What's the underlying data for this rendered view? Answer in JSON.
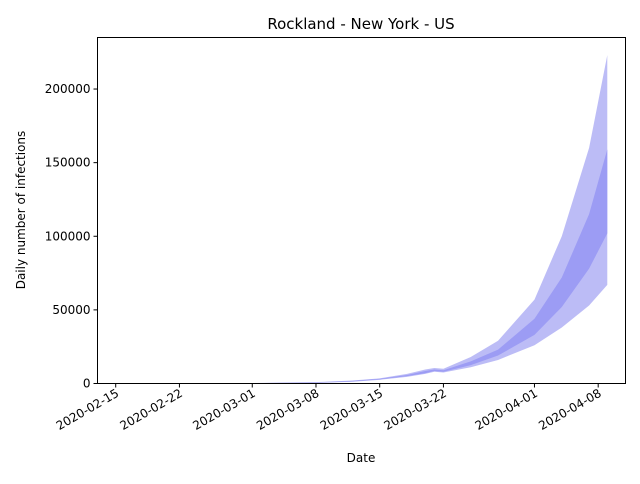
{
  "chart_data": {
    "type": "area",
    "title": "Rockland - New York - US",
    "xlabel": "Date",
    "ylabel": "Daily number of infections",
    "x_type": "date",
    "xlim": [
      "2020-02-13",
      "2020-04-11"
    ],
    "ylim": [
      0,
      235000
    ],
    "x_ticks": [
      "2020-02-15",
      "2020-02-22",
      "2020-03-01",
      "2020-03-08",
      "2020-03-15",
      "2020-03-22",
      "2020-04-01",
      "2020-04-08"
    ],
    "y_ticks": [
      0,
      50000,
      100000,
      150000,
      200000
    ],
    "y_tick_labels": [
      "0",
      "50000",
      "100000",
      "150000",
      "200000"
    ],
    "grid": false,
    "legend": "none",
    "colors": {
      "outer_band": "#b8b8f6",
      "inner_band": "#9898f4",
      "observed": "#e8a0a0"
    },
    "series": [
      {
        "role": "outer_band",
        "dates": [
          "2020-02-16",
          "2020-02-22",
          "2020-03-01",
          "2020-03-08",
          "2020-03-12",
          "2020-03-15",
          "2020-03-18",
          "2020-03-20",
          "2020-03-21",
          "2020-03-22",
          "2020-03-25",
          "2020-03-28",
          "2020-04-01",
          "2020-04-04",
          "2020-04-07",
          "2020-04-09"
        ],
        "lower": [
          0,
          0,
          100,
          400,
          1200,
          2500,
          4500,
          6500,
          8000,
          7500,
          11000,
          16000,
          26000,
          38000,
          53000,
          67000
        ],
        "upper": [
          0,
          100,
          300,
          900,
          2000,
          3500,
          6500,
          9500,
          10500,
          10000,
          18000,
          29000,
          57000,
          100000,
          160000,
          223000
        ]
      },
      {
        "role": "inner_band",
        "dates": [
          "2020-02-16",
          "2020-02-22",
          "2020-03-01",
          "2020-03-08",
          "2020-03-12",
          "2020-03-15",
          "2020-03-18",
          "2020-03-20",
          "2020-03-21",
          "2020-03-22",
          "2020-03-25",
          "2020-03-28",
          "2020-04-01",
          "2020-04-04",
          "2020-04-07",
          "2020-04-09"
        ],
        "lower": [
          0,
          0,
          150,
          500,
          1400,
          2800,
          5000,
          7000,
          8500,
          8000,
          12500,
          19000,
          33000,
          52000,
          78000,
          102000
        ],
        "upper": [
          0,
          80,
          250,
          750,
          1800,
          3200,
          5800,
          8500,
          9500,
          9000,
          15000,
          23000,
          44000,
          72000,
          115000,
          159000
        ]
      },
      {
        "role": "observed",
        "dates": [
          "2020-02-16",
          "2020-04-06"
        ],
        "values": [
          0,
          0
        ]
      }
    ]
  }
}
